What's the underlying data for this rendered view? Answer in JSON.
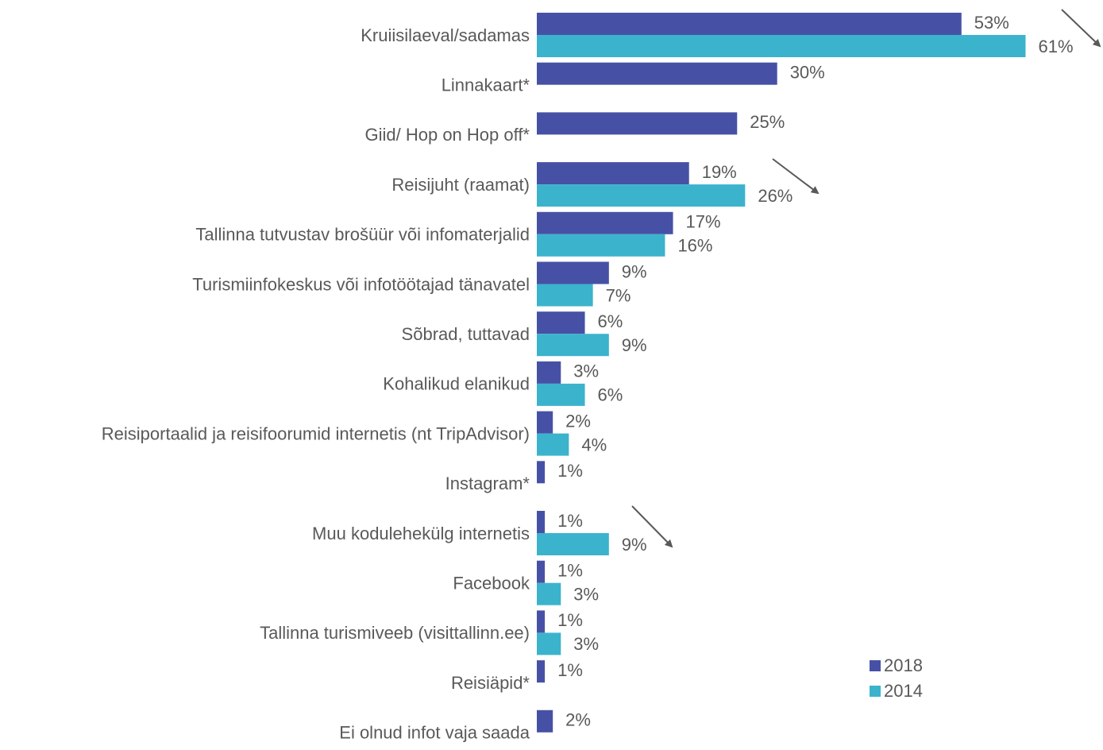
{
  "chart_data": {
    "type": "bar",
    "orientation": "horizontal",
    "categories": [
      "Kruiisilaeval/sadamas",
      "Linnakaart*",
      "Giid/ Hop on Hop off*",
      "Reisijuht (raamat)",
      "Tallinna tutvustav brošüür või infomaterjalid",
      "Turismiinfokeskus või infotöötajad tänavatel",
      "Sõbrad, tuttavad",
      "Kohalikud elanikud",
      "Reisiportaalid ja reisifoorumid internetis (nt TripAdvisor)",
      "Instagram*",
      "Muu kodulehekülg internetis",
      "Facebook",
      "Tallinna turismiveeb (visittallinn.ee)",
      "Reisiäpid*",
      "Ei olnud infot vaja saada"
    ],
    "series": [
      {
        "name": "2018",
        "color": "#4651a6",
        "values": [
          53,
          30,
          25,
          19,
          17,
          9,
          6,
          3,
          2,
          1,
          1,
          1,
          1,
          1,
          2
        ],
        "value_labels": [
          "53%",
          "30%",
          "25%",
          "19%",
          "17%",
          "9%",
          "6%",
          "3%",
          "2%",
          "1%",
          "1%",
          "1%",
          "1%",
          "1%",
          "2%"
        ]
      },
      {
        "name": "2014",
        "color": "#3cb3cc",
        "values": [
          61,
          null,
          null,
          26,
          16,
          7,
          9,
          6,
          4,
          null,
          9,
          3,
          3,
          null,
          null
        ],
        "value_labels": [
          "61%",
          null,
          null,
          "26%",
          "16%",
          "7%",
          "9%",
          "6%",
          "4%",
          null,
          "9%",
          "3%",
          "3%",
          null,
          null
        ]
      }
    ],
    "legend": "bottom-right"
  }
}
